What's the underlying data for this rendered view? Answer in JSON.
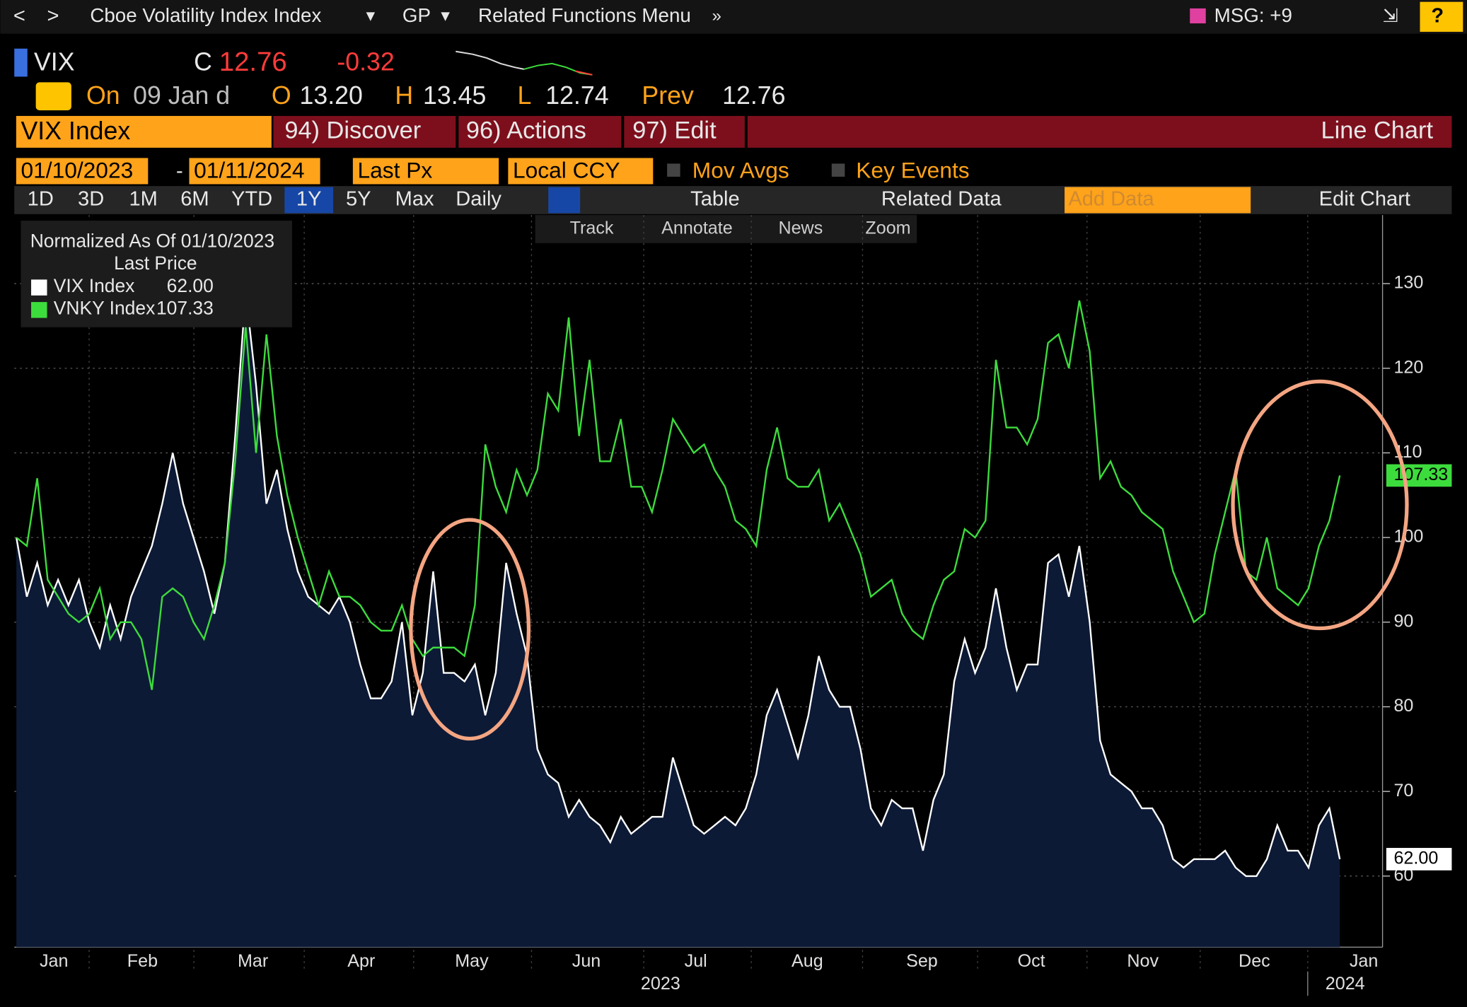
{
  "toolbar": {
    "title": "Cboe Volatility Index Index",
    "gp": "GP",
    "menu": "Related Functions Menu",
    "msg": "MSG: +9"
  },
  "quote": {
    "ticker": "VIX",
    "c_label": "C",
    "last": "12.76",
    "change": "-0.32",
    "on": "On",
    "date": "09 Jan d",
    "o_label": "O",
    "open": "13.20",
    "h_label": "H",
    "high": "13.45",
    "l_label": "L",
    "low": "12.74",
    "prev_label": "Prev",
    "prev": "12.76"
  },
  "menubar": {
    "security": "VIX Index",
    "discover": "94) Discover",
    "actions": "96) Actions",
    "edit": "97) Edit",
    "chart_type": "Line Chart"
  },
  "controls": {
    "start": "01/10/2023",
    "end": "01/11/2024",
    "field": "Last Px",
    "currency": "Local CCY",
    "mov_avgs": "Mov Avgs",
    "key_events": "Key Events",
    "periods": [
      "1D",
      "3D",
      "1M",
      "6M",
      "YTD",
      "1Y",
      "5Y",
      "Max"
    ],
    "frequency": "Daily",
    "table": "Table",
    "related": "Related Data",
    "add_data": "Add Data",
    "edit_chart": "Edit Chart"
  },
  "tools": [
    "Track",
    "Annotate",
    "News",
    "Zoom"
  ],
  "chart_data": {
    "type": "line",
    "legend_title": "Normalized As Of 01/10/2023",
    "legend_subtitle": "Last Price",
    "years": [
      "2023",
      "2024"
    ],
    "x": [
      0,
      1,
      2,
      3,
      4,
      5,
      6,
      7,
      8,
      9,
      10,
      11,
      12,
      13,
      14,
      15,
      16,
      17,
      18,
      19,
      20,
      21,
      22,
      23,
      24,
      25,
      26,
      27,
      28,
      29,
      30,
      31,
      32,
      33,
      34,
      35,
      36,
      37,
      38,
      39,
      40,
      41,
      42,
      43,
      44,
      45,
      46,
      47,
      48,
      49,
      50,
      51,
      52,
      53,
      54,
      55,
      56,
      57,
      58,
      59,
      60,
      61,
      62,
      63,
      64,
      65,
      66,
      67,
      68,
      69,
      70,
      71,
      72,
      73,
      74,
      75,
      76,
      77,
      78,
      79,
      80,
      81,
      82,
      83,
      84,
      85,
      86,
      87,
      88,
      89,
      90,
      91,
      92,
      93,
      94,
      95,
      96,
      97,
      98,
      99,
      100,
      101,
      102,
      103,
      104,
      105,
      106,
      107,
      108,
      109,
      110,
      111,
      112,
      113,
      114,
      115,
      116,
      117,
      118,
      119,
      120,
      121,
      122,
      123,
      124,
      125,
      126,
      127
    ],
    "series": [
      {
        "name": "VIX Index",
        "color": "#ffffff",
        "fill": "#0d1a36",
        "last_price": "62.00",
        "values": [
          100,
          93,
          97,
          92,
          95,
          92,
          95,
          90,
          87,
          92,
          88,
          93,
          96,
          99,
          104,
          110,
          104,
          100,
          96,
          91,
          97,
          112,
          129,
          118,
          104,
          108,
          101,
          96,
          93,
          92,
          91,
          93,
          90,
          85,
          81,
          81,
          83,
          90,
          79,
          84,
          96,
          84,
          84,
          83,
          85,
          79,
          84,
          97,
          91,
          86,
          75,
          72,
          71,
          67,
          69,
          67,
          66,
          64,
          67,
          65,
          66,
          67,
          67,
          74,
          70,
          66,
          65,
          66,
          67,
          66,
          68,
          72,
          79,
          82,
          78,
          74,
          79,
          86,
          82,
          80,
          80,
          75,
          68,
          66,
          69,
          68,
          68,
          63,
          69,
          72,
          83,
          88,
          84,
          87,
          94,
          87,
          82,
          85,
          85,
          97,
          98,
          93,
          99,
          90,
          76,
          72,
          71,
          70,
          68,
          68,
          66,
          62,
          61,
          62,
          62,
          62,
          63,
          61,
          60,
          60,
          62,
          66,
          63,
          63,
          61,
          66,
          68,
          62
        ]
      },
      {
        "name": "VNKY Index",
        "color": "#3ddc3d",
        "last_price": "107.33",
        "values": [
          100,
          99,
          107,
          95,
          93,
          91,
          90,
          91,
          94,
          88,
          90,
          90,
          88,
          82,
          93,
          94,
          93,
          90,
          88,
          92,
          97,
          109,
          125,
          110,
          124,
          112,
          105,
          100,
          96,
          92,
          96,
          93,
          93,
          92,
          90,
          89,
          89,
          92,
          88,
          86,
          87,
          87,
          87,
          86,
          92,
          111,
          106,
          103,
          108,
          105,
          108,
          117,
          115,
          126,
          112,
          121,
          109,
          109,
          114,
          106,
          106,
          103,
          108,
          114,
          112,
          110,
          111,
          108,
          106,
          102,
          101,
          99,
          108,
          113,
          107,
          106,
          106,
          108,
          102,
          104,
          101,
          98,
          93,
          94,
          95,
          91,
          89,
          88,
          92,
          95,
          96,
          101,
          100,
          102,
          121,
          113,
          113,
          111,
          114,
          123,
          124,
          120,
          128,
          122,
          107,
          109,
          106,
          105,
          103,
          102,
          101,
          96,
          93,
          90,
          91,
          98,
          103,
          108,
          96,
          95,
          100,
          94,
          93,
          92,
          94,
          99,
          102,
          107.33
        ]
      }
    ],
    "xlim": [
      -0.2,
      131.1
    ],
    "xticks": [
      {
        "value": 3.6,
        "label": "Jan"
      },
      {
        "value": 12.1,
        "label": "Feb"
      },
      {
        "value": 22.7,
        "label": "Mar"
      },
      {
        "value": 33.1,
        "label": "Apr"
      },
      {
        "value": 43.7,
        "label": "May"
      },
      {
        "value": 54.7,
        "label": "Jun"
      },
      {
        "value": 65.2,
        "label": "Jul"
      },
      {
        "value": 75.9,
        "label": "Aug"
      },
      {
        "value": 86.9,
        "label": "Sep"
      },
      {
        "value": 97.4,
        "label": "Oct"
      },
      {
        "value": 108.1,
        "label": "Nov"
      },
      {
        "value": 118.8,
        "label": "Dec"
      },
      {
        "value": 129.3,
        "label": "Jan"
      }
    ],
    "ylim": [
      51.6,
      138.1
    ],
    "yticks": [
      60,
      70,
      80,
      90,
      100,
      110,
      120,
      130
    ],
    "grid": true,
    "axis_side": "right"
  }
}
